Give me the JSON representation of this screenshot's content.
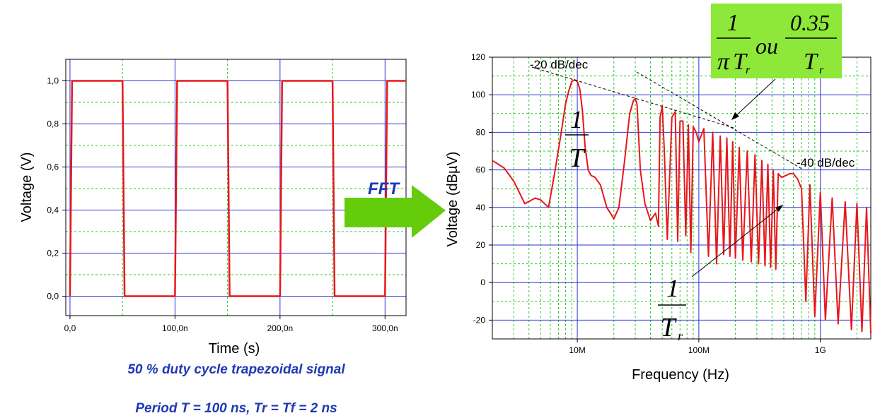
{
  "chart_data": [
    {
      "type": "line",
      "xlabel": "Time (s)",
      "ylabel": "Voltage (V)",
      "xlim": [
        -4e-09,
        3.2e-07
      ],
      "ylim": [
        -0.09,
        1.1
      ],
      "x_ticks": [
        0,
        1e-07,
        2e-07,
        3e-07
      ],
      "x_tick_labels": [
        "0,0",
        "100,0n",
        "200,0n",
        "300,0n"
      ],
      "y_ticks": [
        0,
        0.2,
        0.4,
        0.6,
        0.8,
        1.0
      ],
      "y_tick_labels": [
        "0,0",
        "0,2",
        "0,4",
        "0,6",
        "0,8",
        "1,0"
      ],
      "grid": true,
      "series": [
        {
          "color": "#e8161b",
          "x": [
            0,
            2e-09,
            5e-08,
            5.2e-08,
            1e-07,
            1.02e-07,
            1.5e-07,
            1.52e-07,
            2e-07,
            2.02e-07,
            2.5e-07,
            2.52e-07,
            3e-07,
            3.02e-07,
            3.2e-07
          ],
          "y": [
            0,
            1,
            1,
            0,
            0,
            1,
            1,
            0,
            0,
            1,
            1,
            0,
            0,
            1,
            1
          ]
        }
      ]
    },
    {
      "type": "line",
      "xlabel": "Frequency (Hz)",
      "ylabel": "Voltage (dBµV)",
      "xscale": "log",
      "xlim": [
        2000000,
        2600000000
      ],
      "ylim": [
        -30,
        120
      ],
      "x_ticks": [
        10000000,
        100000000,
        1000000000
      ],
      "x_tick_labels": [
        "10M",
        "100M",
        "1G"
      ],
      "y_ticks": [
        -20,
        0,
        20,
        40,
        60,
        80,
        100,
        120
      ],
      "y_tick_labels": [
        "-20",
        "0",
        "20",
        "40",
        "60",
        "80",
        "100",
        "120"
      ],
      "grid": true,
      "series": [
        {
          "color": "#e8161b",
          "x": [
            2000000,
            2500000,
            3000000,
            3700000,
            4500000,
            5000000,
            5800000,
            6500000,
            7300000,
            8000000,
            8500000,
            9000000,
            9500000,
            10000000,
            10500000,
            11000000,
            11600000,
            12300000,
            13000000,
            14000000,
            15500000,
            17500000,
            20000000,
            22000000,
            24500000,
            27000000,
            29000000,
            30000000,
            31000000,
            33000000,
            36000000,
            40000000,
            44000000,
            46500000,
            48000000,
            50000000,
            52000000,
            55000000,
            60000000,
            64000000,
            67000000,
            70000000,
            74000000,
            78000000,
            82000000,
            86000000,
            90000000,
            95000000,
            100000000,
            110000000,
            120000000,
            130000000,
            140000000,
            150000000,
            160000000,
            170000000,
            180000000,
            190000000,
            200000000,
            215000000,
            230000000,
            250000000,
            270000000,
            290000000,
            310000000,
            330000000,
            350000000,
            370000000,
            390000000,
            410000000,
            430000000,
            450000000,
            480000000,
            520000000,
            560000000,
            600000000,
            650000000,
            700000000,
            760000000,
            820000000,
            900000000,
            1000000000,
            1100000000,
            1250000000,
            1400000000,
            1600000000,
            1800000000,
            2000000000,
            2200000000,
            2400000000,
            2600000000
          ],
          "y": [
            65,
            61,
            54,
            42,
            45,
            44,
            40,
            58,
            78,
            95,
            102,
            107,
            108,
            107,
            103,
            92,
            72,
            60,
            57,
            56,
            52,
            40,
            34,
            40,
            65,
            90,
            97,
            98,
            95,
            60,
            42,
            33,
            37,
            30,
            88,
            94,
            70,
            23,
            88,
            91,
            22,
            86,
            86,
            25,
            84,
            16,
            83,
            80,
            75,
            82,
            14,
            80,
            10,
            78,
            15,
            77,
            14,
            75,
            13,
            72,
            12,
            70,
            11,
            68,
            10,
            65,
            9,
            63,
            8,
            60,
            7,
            58,
            56,
            57,
            58,
            58,
            55,
            50,
            -10,
            52,
            -18,
            48,
            -20,
            45,
            -22,
            43,
            -25,
            42,
            -26,
            40,
            -27
          ]
        }
      ],
      "annotations": [
        "-20 dB/dec",
        "-40 dB/dec"
      ]
    }
  ],
  "texts": {
    "fft": "FFT",
    "slope1": "-20 dB/dec",
    "slope2": "-40 dB/dec",
    "caption1": "50 % duty cycle trapezoidal signal",
    "caption2": "Period T = 100 ns, Tr = Tf = 2 ns"
  },
  "math": {
    "one": "1",
    "T": "T",
    "Tr_T": "T",
    "Tr_sub": "r",
    "pi": "π",
    "ou": "ou",
    "num_035": "0.35"
  },
  "colors": {
    "curve": "#e8161b",
    "major_grid": "#2b35d6",
    "minor_grid": "#28c728",
    "arrow": "#65cc0c",
    "formula_box": "#8ee83a",
    "caption": "#1f3ab4"
  }
}
